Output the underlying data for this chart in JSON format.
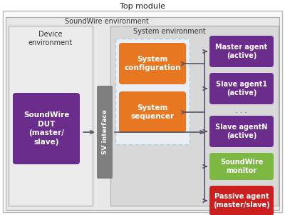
{
  "title": "Top module",
  "bg_color": "#ffffff",
  "purple_color": "#6b2d8b",
  "orange_color": "#e87722",
  "green_color": "#7db843",
  "red_color": "#cc2020",
  "sv_bar_color": "#7f7f7f",
  "arrow_color": "#555566",
  "outer_bg": "#f5f5f5",
  "sw_env_bg": "#e8e8e8",
  "sys_env_bg": "#d8d8d8",
  "dev_env_bg": "#ebebeb",
  "dashed_box_color": "#aaccdd",
  "boxes": {
    "soundwire_dut": "SoundWire\nDUT\n(master/\nslave)",
    "sys_config": "System\nconfiguration",
    "sys_seq": "System\nsequencer",
    "master_agent": "Master agent\n(active)",
    "slave_agent1": "Slave agent1\n(active)",
    "slave_agentN": "Slave agentN\n(active)",
    "sw_monitor": "SoundWire\nmonitor",
    "passive_agent": "Passive agent\n(master/slave)"
  },
  "labels": {
    "soundwire_env": "SoundWire environment",
    "system_env": "System environment",
    "device_env": "Device\nenvironment",
    "sv_interface": "SV interface"
  }
}
